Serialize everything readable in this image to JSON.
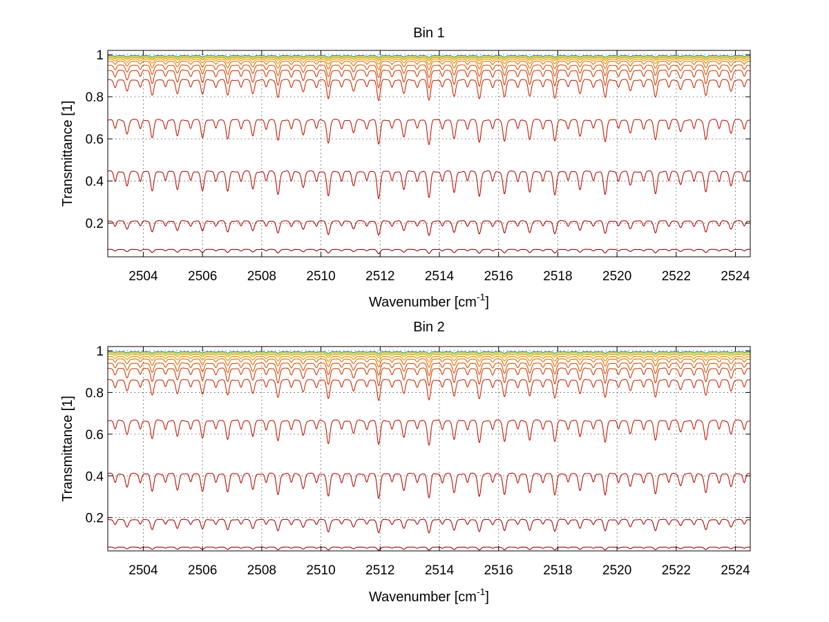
{
  "chart_data": [
    {
      "type": "line",
      "title": "Bin 1",
      "xlabel": "Wavenumber [cm",
      "xlabel_sup": "-1",
      "xlabel_close": "]",
      "ylabel": "Transmittance [1]",
      "xlim": [
        2502.8,
        2524.5
      ],
      "ylim": [
        0.04,
        1.02
      ],
      "xticks": [
        2504,
        2506,
        2508,
        2510,
        2512,
        2514,
        2516,
        2518,
        2520,
        2522,
        2524
      ],
      "yticks": [
        0.2,
        0.4,
        0.6,
        0.8,
        1
      ],
      "ytick_labels": [
        "0.2",
        "0.4",
        "0.6",
        "0.8",
        "1"
      ],
      "grid": true,
      "line_spacing_cm-1": 0.85,
      "series": [
        {
          "baseline": 0.995,
          "depth": 0.008,
          "color": "#1f6fd0"
        },
        {
          "baseline": 0.993,
          "depth": 0.008,
          "color": "#21b8e6"
        },
        {
          "baseline": 0.992,
          "depth": 0.008,
          "color": "#8ee08c"
        },
        {
          "baseline": 0.99,
          "depth": 0.01,
          "color": "#d8e23a"
        },
        {
          "baseline": 0.988,
          "depth": 0.012,
          "color": "#f2c40f"
        },
        {
          "baseline": 0.985,
          "depth": 0.015,
          "color": "#f6a400"
        },
        {
          "baseline": 0.978,
          "depth": 0.025,
          "color": "#f08a00"
        },
        {
          "baseline": 0.968,
          "depth": 0.04,
          "color": "#ea6a00"
        },
        {
          "baseline": 0.95,
          "depth": 0.06,
          "color": "#e25000"
        },
        {
          "baseline": 0.925,
          "depth": 0.085,
          "color": "#d93a00"
        },
        {
          "baseline": 0.88,
          "depth": 0.1,
          "color": "#d22800"
        },
        {
          "baseline": 0.69,
          "depth": 0.12,
          "color": "#c81600"
        },
        {
          "baseline": 0.445,
          "depth": 0.13,
          "color": "#bb0c00"
        },
        {
          "baseline": 0.21,
          "depth": 0.07,
          "color": "#ad0500"
        },
        {
          "baseline": 0.075,
          "depth": 0.02,
          "color": "#9e0000"
        }
      ]
    },
    {
      "type": "line",
      "title": "Bin 2",
      "xlabel": "Wavenumber [cm",
      "xlabel_sup": "-1",
      "xlabel_close": "]",
      "ylabel": "Transmittance [1]",
      "xlim": [
        2502.8,
        2524.5
      ],
      "ylim": [
        0.04,
        1.02
      ],
      "xticks": [
        2504,
        2506,
        2508,
        2510,
        2512,
        2514,
        2516,
        2518,
        2520,
        2522,
        2524
      ],
      "yticks": [
        0.2,
        0.4,
        0.6,
        0.8,
        1
      ],
      "ytick_labels": [
        "0.2",
        "0.4",
        "0.6",
        "0.8",
        "1"
      ],
      "grid": true,
      "line_spacing_cm-1": 0.85,
      "series": [
        {
          "baseline": 0.995,
          "depth": 0.008,
          "color": "#1f6fd0"
        },
        {
          "baseline": 0.993,
          "depth": 0.008,
          "color": "#21b8e6"
        },
        {
          "baseline": 0.992,
          "depth": 0.008,
          "color": "#8ee08c"
        },
        {
          "baseline": 0.99,
          "depth": 0.01,
          "color": "#d8e23a"
        },
        {
          "baseline": 0.987,
          "depth": 0.012,
          "color": "#f2c40f"
        },
        {
          "baseline": 0.982,
          "depth": 0.015,
          "color": "#f6a400"
        },
        {
          "baseline": 0.972,
          "depth": 0.025,
          "color": "#f08a00"
        },
        {
          "baseline": 0.96,
          "depth": 0.04,
          "color": "#ea6a00"
        },
        {
          "baseline": 0.94,
          "depth": 0.06,
          "color": "#e25000"
        },
        {
          "baseline": 0.915,
          "depth": 0.085,
          "color": "#d93a00"
        },
        {
          "baseline": 0.86,
          "depth": 0.1,
          "color": "#d22800"
        },
        {
          "baseline": 0.665,
          "depth": 0.12,
          "color": "#c81600"
        },
        {
          "baseline": 0.41,
          "depth": 0.12,
          "color": "#bb0c00"
        },
        {
          "baseline": 0.19,
          "depth": 0.065,
          "color": "#ad0500"
        },
        {
          "baseline": 0.058,
          "depth": 0.015,
          "color": "#9e0000"
        }
      ]
    }
  ]
}
